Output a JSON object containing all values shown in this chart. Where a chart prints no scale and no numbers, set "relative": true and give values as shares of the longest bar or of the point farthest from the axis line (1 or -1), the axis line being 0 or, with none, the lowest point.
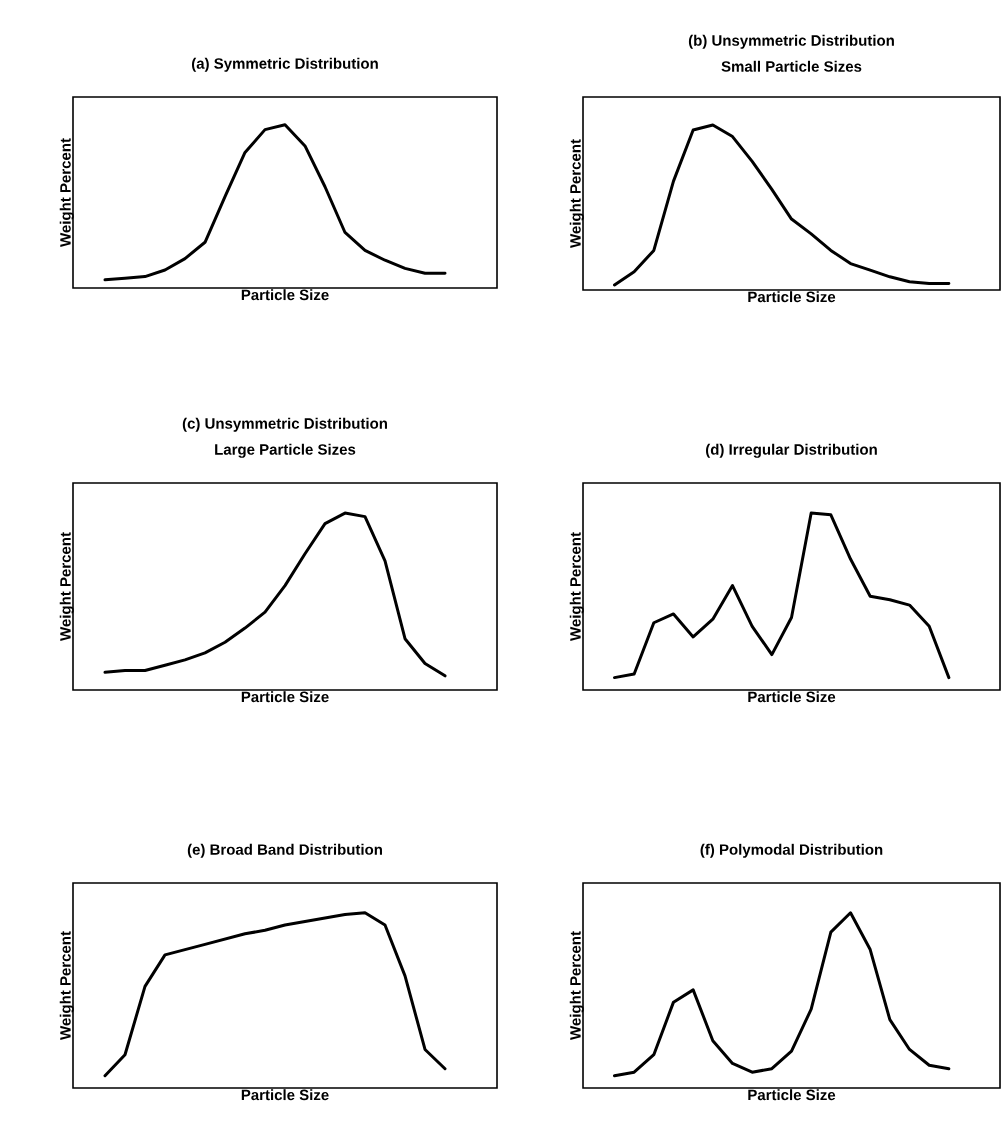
{
  "chart_data": [
    {
      "type": "line",
      "title": "(a) Symmetric Distribution",
      "xlabel": "Particle Size",
      "ylabel": "Weight Percent",
      "relative": true,
      "color": "#000000",
      "categories": [
        null,
        null,
        null,
        null,
        null,
        null,
        null,
        null,
        null,
        null,
        null,
        null,
        null,
        null,
        null,
        null,
        null,
        null
      ],
      "values": [
        0.05,
        0.06,
        0.07,
        0.11,
        0.18,
        0.28,
        0.56,
        0.83,
        0.97,
        1.0,
        0.87,
        0.62,
        0.34,
        0.23,
        0.17,
        0.12,
        0.09,
        0.09
      ]
    },
    {
      "type": "line",
      "title": "(b) Unsymmetric Distribution",
      "subtitle": "Small Particle Sizes",
      "xlabel": "Particle Size",
      "ylabel": "Weight Percent",
      "relative": true,
      "color": "#000000",
      "categories": [
        null,
        null,
        null,
        null,
        null,
        null,
        null,
        null,
        null,
        null,
        null,
        null,
        null,
        null,
        null,
        null,
        null,
        null
      ],
      "values": [
        0.03,
        0.11,
        0.24,
        0.66,
        0.97,
        1.0,
        0.93,
        0.78,
        0.61,
        0.43,
        0.34,
        0.24,
        0.16,
        0.12,
        0.08,
        0.05,
        0.04,
        0.04
      ]
    },
    {
      "type": "line",
      "title": "(c) Unsymmetric Distribution",
      "subtitle": "Large Particle Sizes",
      "xlabel": "Particle Size",
      "ylabel": "Weight Percent",
      "relative": true,
      "color": "#000000",
      "categories": [
        null,
        null,
        null,
        null,
        null,
        null,
        null,
        null,
        null,
        null,
        null,
        null,
        null,
        null,
        null,
        null,
        null,
        null
      ],
      "values": [
        0.1,
        0.11,
        0.11,
        0.14,
        0.17,
        0.21,
        0.27,
        0.35,
        0.44,
        0.59,
        0.77,
        0.94,
        1.0,
        0.98,
        0.73,
        0.29,
        0.15,
        0.08
      ]
    },
    {
      "type": "line",
      "title": "(d) Irregular Distribution",
      "xlabel": "Particle Size",
      "ylabel": "Weight Percent",
      "relative": true,
      "color": "#000000",
      "categories": [
        null,
        null,
        null,
        null,
        null,
        null,
        null,
        null,
        null,
        null,
        null,
        null,
        null,
        null,
        null,
        null,
        null,
        null
      ],
      "values": [
        0.07,
        0.09,
        0.38,
        0.43,
        0.3,
        0.4,
        0.59,
        0.36,
        0.2,
        0.41,
        1.0,
        0.99,
        0.74,
        0.53,
        0.51,
        0.48,
        0.36,
        0.07
      ]
    },
    {
      "type": "line",
      "title": "(e) Broad Band Distribution",
      "xlabel": "Particle Size",
      "ylabel": "Weight Percent",
      "relative": true,
      "color": "#000000",
      "categories": [
        null,
        null,
        null,
        null,
        null,
        null,
        null,
        null,
        null,
        null,
        null,
        null,
        null,
        null,
        null,
        null,
        null,
        null
      ],
      "values": [
        0.07,
        0.19,
        0.58,
        0.76,
        0.79,
        0.82,
        0.85,
        0.88,
        0.9,
        0.93,
        0.95,
        0.97,
        0.99,
        1.0,
        0.93,
        0.64,
        0.22,
        0.11
      ]
    },
    {
      "type": "line",
      "title": "(f) Polymodal Distribution",
      "xlabel": "Particle Size",
      "ylabel": "Weight Percent",
      "relative": true,
      "color": "#000000",
      "categories": [
        null,
        null,
        null,
        null,
        null,
        null,
        null,
        null,
        null,
        null,
        null,
        null,
        null,
        null,
        null,
        null,
        null,
        null
      ],
      "values": [
        0.07,
        0.09,
        0.19,
        0.49,
        0.56,
        0.27,
        0.14,
        0.09,
        0.11,
        0.21,
        0.45,
        0.89,
        1.0,
        0.79,
        0.39,
        0.22,
        0.13,
        0.11
      ]
    }
  ]
}
